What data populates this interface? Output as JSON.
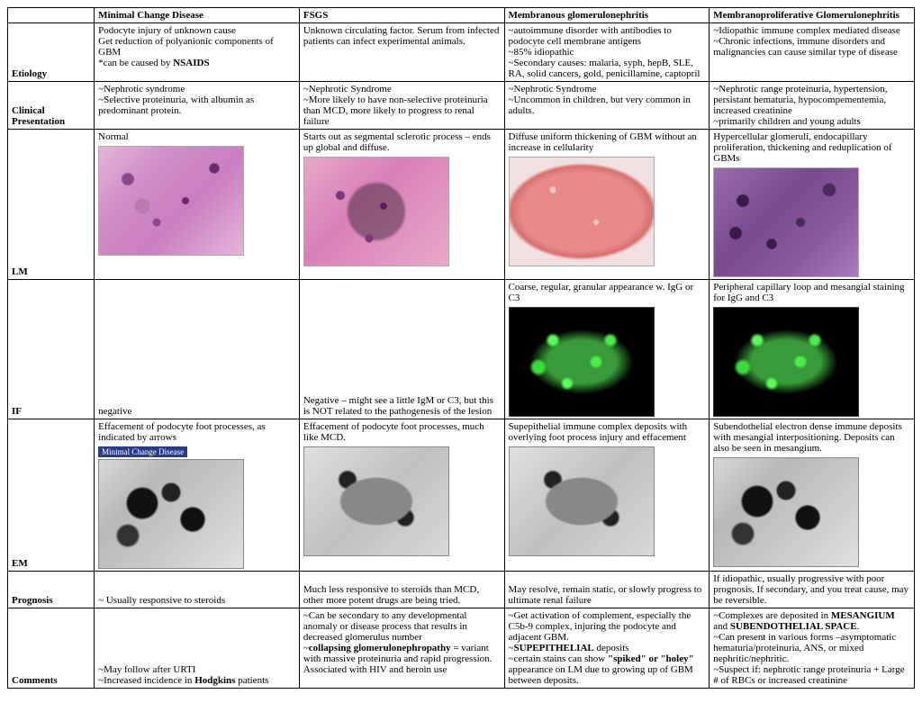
{
  "columns": [
    "Minimal Change Disease",
    "FSGS",
    "Membranous glomerulonephritis",
    "Membranoproliferative Glomerulonephritis"
  ],
  "rows": {
    "etiology": {
      "label": "Etiology",
      "cells": [
        "Podocyte injury of unknown cause\nGet reduction of polyanionic components of GBM\n*can be caused by <b>NSAIDS</b>",
        "Unknown circulating factor. Serum from infected patients can infect experimental animals.",
        "~autoimmune disorder with antibodies to podocyte cell membrane antigens\n~85% idiopathic\n~Secondary causes: malaria, syph, hepB, SLE, RA, solid cancers, gold, penicillamine, captopril",
        "~Idiopathic immune complex mediated disease\n~Chronic infections, immune disorders and malignancies can cause similar type of disease"
      ]
    },
    "clinical": {
      "label": "Clinical Presentation",
      "cells": [
        "~Nephrotic syndrome\n~Selective proteinuria, with albumin as predominant protein.",
        "~Nephrotic Syndrome\n~More likely to have non-selective proteinuria than MCD, more likely to progress to renal failure",
        "~Nephrotic Syndrome\n~Uncommon in children, but very common in adults.",
        "~Nephrotic range proteinuria, hypertension, persistant hematuria, hypocompementemia, increased creatinine\n~primarily children and young adults"
      ]
    },
    "lm": {
      "label": "LM",
      "captions": [
        "Normal",
        "Starts out as segmental sclerotic process – ends up global and diffuse.",
        "Diffuse uniform thickening of GBM without an increase in cellularity",
        "Hypercellular glomeruli, endocapillary proliferation, thickening and reduplication of GBMs"
      ],
      "image_colors": [
        "histo-pink",
        "histo-pink2",
        "histo-pink3",
        "histo-purple"
      ]
    },
    "if": {
      "label": "IF",
      "captions": [
        "",
        "",
        "Coarse, regular, granular appearance w. IgG or C3",
        "Peripheral capillary loop and mesangial staining for IgG and C3"
      ],
      "bottom_text": [
        "negative",
        "Negative – might see a little IgM or C3, but this is NOT related to the pathogenesis of the lesion",
        "",
        ""
      ],
      "has_image": [
        false,
        false,
        true,
        true
      ]
    },
    "em": {
      "label": "EM",
      "captions": [
        "Effacement of podocyte foot processes, as indicated by arrows",
        "Effacement of podocyte foot processes, much like MCD.",
        "Supepithelial immune complex deposits with overlying foot process injury and effacement",
        "Subendothelial electron dense immune deposits with mesangial interpositioning. Deposits can also be seen in mesangium."
      ],
      "banner": "Minimal Change Disease",
      "image_colors": [
        "em-gray",
        "em-gray2",
        "em-gray2",
        "em-gray"
      ]
    },
    "prognosis": {
      "label": "Prognosis",
      "cells": [
        "~ Usually responsive to steroids",
        "Much less responsive to steroids than MCD, other more potent drugs are being tried.",
        "May resolve, remain static, or slowly progress to ultimate renal failure",
        "If idiopathic, usually progressive with poor prognosis. If secondary, and you treat cause, may be reversible."
      ]
    },
    "comments": {
      "label": "Comments",
      "cells": [
        "~May follow after URTI\n~Increased incidence in <b>Hodgkins</b> patients",
        "~Can be secondary to any developmental anomaly or disease process that results in decreased glomerulus number\n~<b>collapsing glomerulonephropathy</b> = variant with massive proteinuria and rapid progression. Associated with HIV and heroin use",
        "~Get activation of complement, especially the C5b-9 complex, injuring the podocyte and adjacent GBM.\n~<b>SUPEPITHELIAL</b> deposits\n~certain stains can show <b>\"spiked\" or \"holey\"</b> appearance on LM due to growing up of GBM between deposits.",
        "~Complexes are deposited in <b>MESANGIUM</b> and <b>SUBENDOTHELIAL SPACE</b>.\n~Can present in various forms –asymptomatic hematuria/proteinuria, ANS, or mixed nephritic/nephritic.\n~Suspect if: nephrotic range proteinuria + Large # of RBCs or increased creatinine"
      ]
    }
  }
}
